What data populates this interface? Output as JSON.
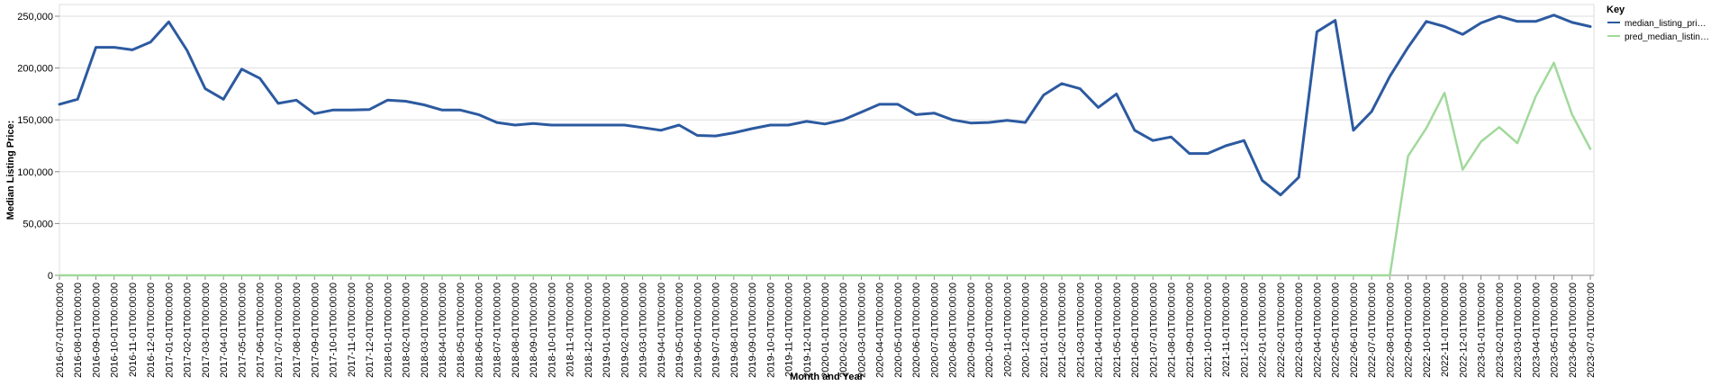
{
  "chart_data": {
    "type": "line",
    "xlabel": "Month and Year",
    "ylabel": "Median Listing Price:",
    "ylim": [
      0,
      250000
    ],
    "y_ticks": [
      "0",
      "50,000",
      "100,000",
      "150,000",
      "200,000",
      "250,000"
    ],
    "y_tick_values": [
      0,
      50000,
      100000,
      150000,
      200000,
      250000
    ],
    "grid": true,
    "legend": {
      "title": "Key",
      "placement": "top-right",
      "entries": [
        "median_listing_pri…",
        "pred_median_listin…"
      ]
    },
    "colors": [
      "#2c5aa0",
      "#a1d99b"
    ],
    "x": [
      "2016-07-01T00:00:00",
      "2016-08-01T00:00:00",
      "2016-09-01T00:00:00",
      "2016-10-01T00:00:00",
      "2016-11-01T00:00:00",
      "2016-12-01T00:00:00",
      "2017-01-01T00:00:00",
      "2017-02-01T00:00:00",
      "2017-03-01T00:00:00",
      "2017-04-01T00:00:00",
      "2017-05-01T00:00:00",
      "2017-06-01T00:00:00",
      "2017-07-01T00:00:00",
      "2017-08-01T00:00:00",
      "2017-09-01T00:00:00",
      "2017-10-01T00:00:00",
      "2017-11-01T00:00:00",
      "2017-12-01T00:00:00",
      "2018-01-01T00:00:00",
      "2018-02-01T00:00:00",
      "2018-03-01T00:00:00",
      "2018-04-01T00:00:00",
      "2018-05-01T00:00:00",
      "2018-06-01T00:00:00",
      "2018-07-01T00:00:00",
      "2018-08-01T00:00:00",
      "2018-09-01T00:00:00",
      "2018-10-01T00:00:00",
      "2018-11-01T00:00:00",
      "2018-12-01T00:00:00",
      "2019-01-01T00:00:00",
      "2019-02-01T00:00:00",
      "2019-03-01T00:00:00",
      "2019-04-01T00:00:00",
      "2019-05-01T00:00:00",
      "2019-06-01T00:00:00",
      "2019-07-01T00:00:00",
      "2019-08-01T00:00:00",
      "2019-09-01T00:00:00",
      "2019-10-01T00:00:00",
      "2019-11-01T00:00:00",
      "2019-12-01T00:00:00",
      "2020-01-01T00:00:00",
      "2020-02-01T00:00:00",
      "2020-03-01T00:00:00",
      "2020-04-01T00:00:00",
      "2020-05-01T00:00:00",
      "2020-06-01T00:00:00",
      "2020-07-01T00:00:00",
      "2020-08-01T00:00:00",
      "2020-09-01T00:00:00",
      "2020-10-01T00:00:00",
      "2020-11-01T00:00:00",
      "2020-12-01T00:00:00",
      "2021-01-01T00:00:00",
      "2021-02-01T00:00:00",
      "2021-03-01T00:00:00",
      "2021-04-01T00:00:00",
      "2021-05-01T00:00:00",
      "2021-06-01T00:00:00",
      "2021-07-01T00:00:00",
      "2021-08-01T00:00:00",
      "2021-09-01T00:00:00",
      "2021-10-01T00:00:00",
      "2021-11-01T00:00:00",
      "2021-12-01T00:00:00",
      "2022-01-01T00:00:00",
      "2022-02-01T00:00:00",
      "2022-03-01T00:00:00",
      "2022-04-01T00:00:00",
      "2022-05-01T00:00:00",
      "2022-06-01T00:00:00",
      "2022-07-01T00:00:00",
      "2022-08-01T00:00:00",
      "2022-09-01T00:00:00",
      "2022-10-01T00:00:00",
      "2022-11-01T00:00:00",
      "2022-12-01T00:00:00",
      "2023-01-01T00:00:00",
      "2023-02-01T00:00:00",
      "2023-03-01T00:00:00",
      "2023-04-01T00:00:00",
      "2023-05-01T00:00:00",
      "2023-06-01T00:00:00",
      "2023-07-01T00:00:00"
    ],
    "series": [
      {
        "name": "median_listing_pri…",
        "values": [
          165000,
          169900,
          220000,
          220000,
          217500,
          225000,
          244500,
          217000,
          180000,
          169900,
          199000,
          190000,
          165900,
          169000,
          156000,
          159500,
          159500,
          159900,
          169000,
          168000,
          164500,
          159500,
          159500,
          155000,
          147500,
          145000,
          146500,
          145000,
          145000,
          145000,
          145000,
          145000,
          142500,
          139900,
          145000,
          135000,
          134500,
          137500,
          141500,
          145000,
          145000,
          148500,
          146000,
          150000,
          157500,
          165000,
          165000,
          155000,
          156500,
          150000,
          147000,
          147500,
          149500,
          147500,
          174000,
          185000,
          180000,
          162000,
          175000,
          139900,
          130000,
          133500,
          117500,
          117500,
          125000,
          130000,
          91500,
          77500,
          94500,
          235000,
          246000,
          139900,
          158000,
          192000,
          220000,
          245000,
          240000,
          232500,
          243500,
          250000,
          245000,
          245000,
          251000,
          244000,
          240000
        ]
      },
      {
        "name": "pred_median_listin…",
        "values": [
          0,
          0,
          0,
          0,
          0,
          0,
          0,
          0,
          0,
          0,
          0,
          0,
          0,
          0,
          0,
          0,
          0,
          0,
          0,
          0,
          0,
          0,
          0,
          0,
          0,
          0,
          0,
          0,
          0,
          0,
          0,
          0,
          0,
          0,
          0,
          0,
          0,
          0,
          0,
          0,
          0,
          0,
          0,
          0,
          0,
          0,
          0,
          0,
          0,
          0,
          0,
          0,
          0,
          0,
          0,
          0,
          0,
          0,
          0,
          0,
          0,
          0,
          0,
          0,
          0,
          0,
          0,
          0,
          0,
          0,
          0,
          0,
          0,
          0,
          115000,
          142000,
          176000,
          102000,
          129000,
          143000,
          127500,
          172500,
          205000,
          155000,
          122000
        ]
      }
    ]
  }
}
